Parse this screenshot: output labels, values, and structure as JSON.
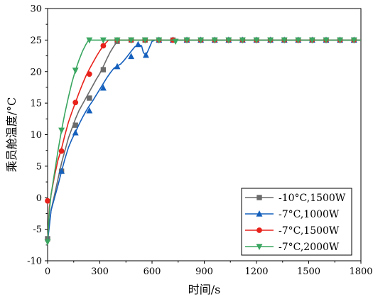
{
  "chart_data": {
    "type": "line",
    "xlabel": "时间/s",
    "ylabel": "乘员舱温度/°C",
    "xlim": [
      0,
      1800
    ],
    "ylim": [
      -10,
      30
    ],
    "xticks": [
      "0",
      "300",
      "600",
      "900",
      "1200",
      "1500",
      "1800"
    ],
    "yticks": [
      "-10",
      "-5",
      "0",
      "5",
      "10",
      "15",
      "20",
      "25",
      "30"
    ],
    "grid": false,
    "legend_position": "bottom-right",
    "series": [
      {
        "name": "-10°C,1500W",
        "color": "#6b6b6b",
        "marker": "square",
        "line": [
          [
            0,
            -6.5
          ],
          [
            20,
            -2
          ],
          [
            40,
            0.5
          ],
          [
            60,
            3
          ],
          [
            80,
            5.5
          ],
          [
            100,
            7.5
          ],
          [
            120,
            9.5
          ],
          [
            140,
            11
          ],
          [
            160,
            12.5
          ],
          [
            180,
            13.8
          ],
          [
            200,
            14.8
          ],
          [
            220,
            15.8
          ],
          [
            240,
            16.8
          ],
          [
            260,
            17.8
          ],
          [
            280,
            18.8
          ],
          [
            300,
            19.7
          ],
          [
            320,
            20.8
          ],
          [
            340,
            22
          ],
          [
            360,
            23.1
          ],
          [
            380,
            24
          ],
          [
            400,
            24.8
          ],
          [
            410,
            25
          ],
          [
            1800,
            25
          ]
        ],
        "markers": [
          [
            0,
            -6.5
          ],
          [
            80,
            4.2
          ],
          [
            160,
            11.5
          ],
          [
            240,
            15.8
          ],
          [
            320,
            20.3
          ],
          [
            400,
            24.8
          ],
          [
            480,
            25
          ],
          [
            560,
            25
          ],
          [
            640,
            25
          ],
          [
            720,
            25
          ],
          [
            800,
            25
          ],
          [
            880,
            25
          ],
          [
            960,
            25
          ],
          [
            1040,
            25
          ],
          [
            1120,
            25
          ],
          [
            1200,
            25
          ],
          [
            1280,
            25
          ],
          [
            1360,
            25
          ],
          [
            1440,
            25
          ],
          [
            1520,
            25
          ],
          [
            1600,
            25
          ],
          [
            1680,
            25
          ],
          [
            1760,
            25
          ]
        ]
      },
      {
        "name": "-7°C,1000W",
        "color": "#1560bd",
        "marker": "triangle-up",
        "line": [
          [
            0,
            -7
          ],
          [
            20,
            -2
          ],
          [
            40,
            0
          ],
          [
            60,
            2
          ],
          [
            80,
            4.2
          ],
          [
            100,
            6.2
          ],
          [
            120,
            8
          ],
          [
            140,
            9.3
          ],
          [
            160,
            10.4
          ],
          [
            180,
            11.6
          ],
          [
            200,
            12.7
          ],
          [
            220,
            13.7
          ],
          [
            240,
            14.6
          ],
          [
            260,
            15.4
          ],
          [
            280,
            16.3
          ],
          [
            300,
            17.2
          ],
          [
            320,
            18.1
          ],
          [
            340,
            19
          ],
          [
            360,
            19.8
          ],
          [
            380,
            20.5
          ],
          [
            400,
            20.9
          ],
          [
            420,
            21.2
          ],
          [
            440,
            21.8
          ],
          [
            460,
            22.5
          ],
          [
            480,
            23.2
          ],
          [
            500,
            23.9
          ],
          [
            520,
            24.3
          ],
          [
            540,
            24.1
          ],
          [
            550,
            23
          ],
          [
            565,
            22.6
          ],
          [
            580,
            23.5
          ],
          [
            600,
            24.8
          ],
          [
            620,
            25
          ],
          [
            1800,
            25
          ]
        ],
        "markers": [
          [
            80,
            4.2
          ],
          [
            160,
            10.3
          ],
          [
            240,
            13.8
          ],
          [
            320,
            17.4
          ],
          [
            400,
            20.8
          ],
          [
            480,
            22.4
          ],
          [
            520,
            24.3
          ],
          [
            565,
            22.6
          ],
          [
            640,
            25
          ],
          [
            720,
            25
          ],
          [
            800,
            25
          ],
          [
            880,
            25
          ],
          [
            960,
            25
          ],
          [
            1040,
            25
          ],
          [
            1120,
            25
          ],
          [
            1200,
            25
          ],
          [
            1280,
            25
          ],
          [
            1360,
            25
          ],
          [
            1440,
            25
          ],
          [
            1520,
            25
          ],
          [
            1600,
            25
          ],
          [
            1680,
            25
          ],
          [
            1760,
            25
          ]
        ]
      },
      {
        "name": "-7°C,1500W",
        "color": "#e8221b",
        "marker": "circle",
        "line": [
          [
            0,
            -7
          ],
          [
            10,
            -1.5
          ],
          [
            20,
            0.5
          ],
          [
            40,
            3.5
          ],
          [
            60,
            6
          ],
          [
            80,
            7.8
          ],
          [
            100,
            10
          ],
          [
            120,
            12
          ],
          [
            140,
            13.6
          ],
          [
            160,
            15.1
          ],
          [
            180,
            16.6
          ],
          [
            200,
            18
          ],
          [
            220,
            19.3
          ],
          [
            240,
            20.4
          ],
          [
            260,
            21.4
          ],
          [
            280,
            22.4
          ],
          [
            300,
            23.3
          ],
          [
            320,
            24.1
          ],
          [
            340,
            24.7
          ],
          [
            350,
            25
          ],
          [
            1800,
            25
          ]
        ],
        "markers": [
          [
            0,
            -0.5
          ],
          [
            80,
            7.4
          ],
          [
            160,
            15.1
          ],
          [
            240,
            19.6
          ],
          [
            320,
            24.1
          ],
          [
            400,
            25
          ],
          [
            480,
            25
          ],
          [
            560,
            25
          ],
          [
            640,
            25
          ],
          [
            720,
            25
          ],
          [
            800,
            25
          ],
          [
            880,
            25
          ],
          [
            960,
            25
          ],
          [
            1040,
            25
          ],
          [
            1120,
            25
          ],
          [
            1200,
            25
          ],
          [
            1280,
            25
          ],
          [
            1360,
            25
          ],
          [
            1440,
            25
          ],
          [
            1520,
            25
          ],
          [
            1600,
            25
          ],
          [
            1680,
            25
          ],
          [
            1760,
            25
          ]
        ]
      },
      {
        "name": "-7°C,2000W",
        "color": "#3aa660",
        "marker": "triangle-down",
        "line": [
          [
            0,
            -7
          ],
          [
            10,
            -2
          ],
          [
            20,
            0.5
          ],
          [
            40,
            4
          ],
          [
            60,
            7.5
          ],
          [
            80,
            10.7
          ],
          [
            100,
            13.5
          ],
          [
            120,
            16
          ],
          [
            140,
            18.3
          ],
          [
            160,
            20.2
          ],
          [
            180,
            21.8
          ],
          [
            200,
            23.2
          ],
          [
            220,
            24.3
          ],
          [
            235,
            25
          ],
          [
            1800,
            25
          ]
        ],
        "markers": [
          [
            0,
            -7
          ],
          [
            80,
            10.7
          ],
          [
            160,
            20.2
          ],
          [
            240,
            25
          ],
          [
            320,
            25
          ],
          [
            400,
            25
          ],
          [
            480,
            25
          ],
          [
            560,
            25
          ],
          [
            640,
            25
          ],
          [
            735,
            24.8
          ],
          [
            800,
            25
          ],
          [
            880,
            25
          ],
          [
            960,
            25
          ],
          [
            1040,
            25
          ],
          [
            1120,
            25
          ],
          [
            1200,
            25
          ],
          [
            1280,
            25
          ],
          [
            1360,
            25
          ],
          [
            1440,
            25
          ],
          [
            1520,
            25
          ],
          [
            1600,
            25
          ],
          [
            1680,
            25
          ],
          [
            1760,
            25
          ]
        ]
      }
    ]
  }
}
